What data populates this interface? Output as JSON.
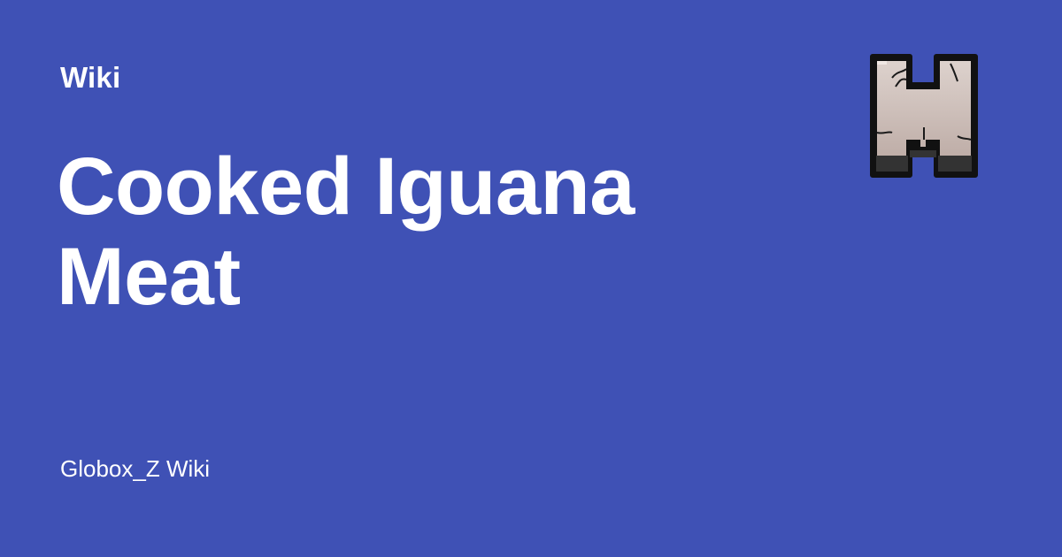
{
  "section": {
    "label": "Wiki"
  },
  "page": {
    "title": "Cooked Iguana Meat"
  },
  "site": {
    "name": "Globox_Z Wiki"
  },
  "logo": {
    "icon": "wiki-logo-icon",
    "depicts": "stone-letter-H"
  },
  "colors": {
    "background": "#3f51b5",
    "text": "#ffffff",
    "logo_face": "#cdbfba",
    "logo_outline": "#111111",
    "logo_base": "#333333"
  }
}
